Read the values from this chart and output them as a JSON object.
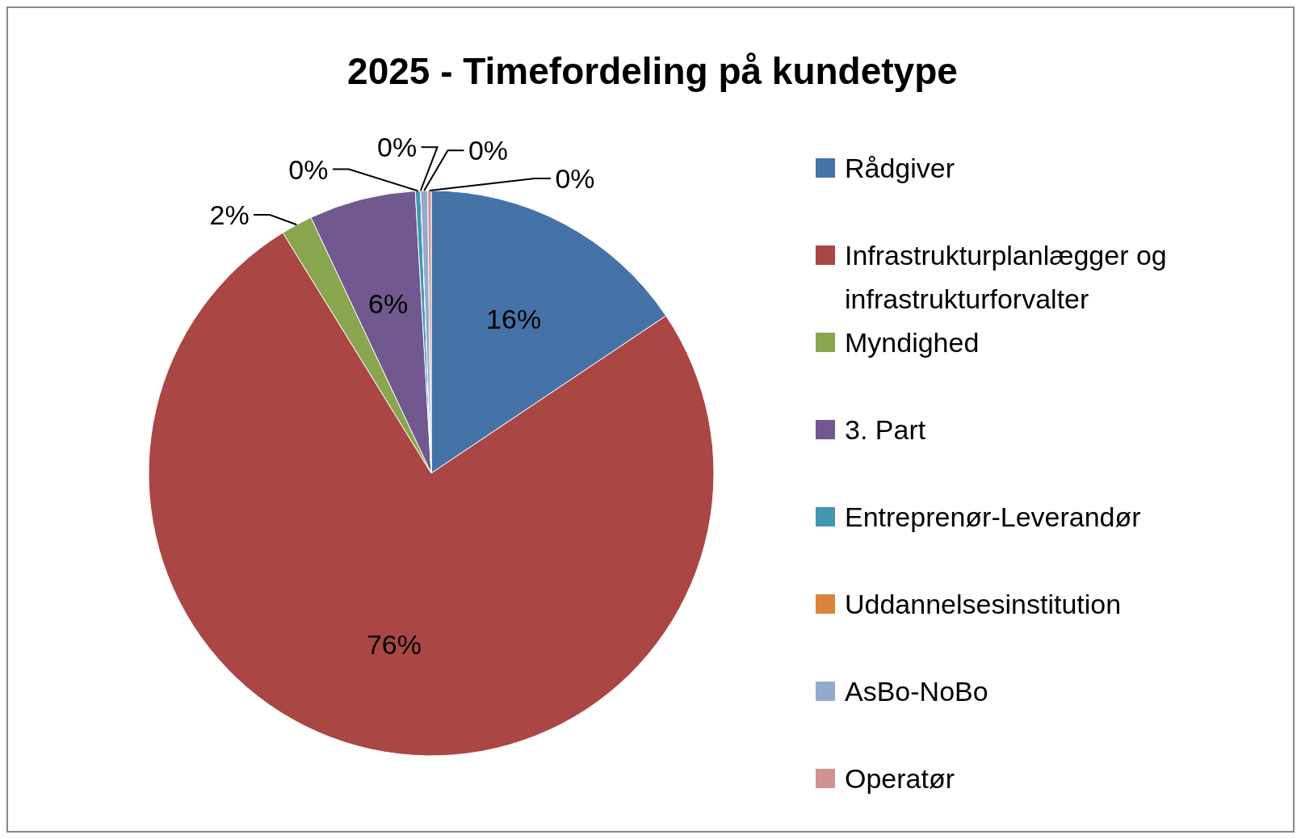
{
  "chart_data": {
    "type": "pie",
    "title": "2025 - Timefordeling på kundetype",
    "categories": [
      "Rådgiver",
      "Infrastrukturplanlægger og infrastrukturforvalter",
      "Myndighed",
      "3. Part",
      "Entreprenør-Leverandør",
      "Uddannelsesinstitution",
      "AsBo-NoBo",
      "Operatør"
    ],
    "values": [
      15.6,
      75.6,
      1.8,
      6.1,
      0.3,
      0,
      0.4,
      0.2
    ],
    "colors": [
      "#4572a7",
      "#aa4643",
      "#89a54e",
      "#71588f",
      "#4198af",
      "#db843d",
      "#93a9cf",
      "#d19392"
    ],
    "value_labels": [
      "16%",
      "76%",
      "2%",
      "6%",
      "0%",
      "0%",
      "0%",
      "0%"
    ],
    "legend": "right"
  }
}
